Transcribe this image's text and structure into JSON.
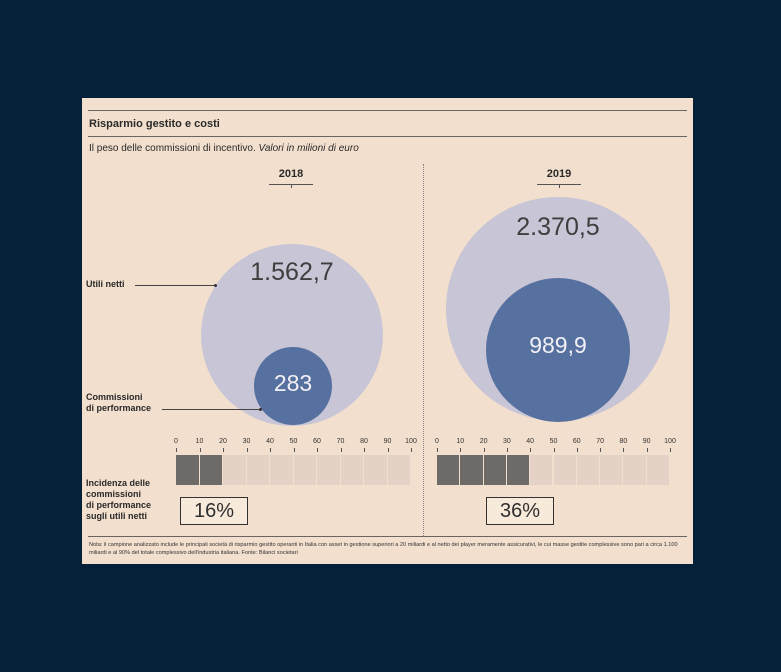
{
  "title": "Risparmio gestito e costi",
  "subtitle_main": "Il peso delle commissioni di incentivo.",
  "subtitle_italic": "Valori in milioni di euro",
  "labels": {
    "utili": "Utili netti",
    "commissioni_1": "Commissioni",
    "commissioni_2": "di performance",
    "incidenza_1": "Incidenza delle",
    "incidenza_2": "commissioni",
    "incidenza_3": "di performance",
    "incidenza_4": "sugli utili netti"
  },
  "chart_data": {
    "type": "bubble",
    "unit": "milioni di euro",
    "years": [
      {
        "year": "2018",
        "utili_netti": 1562.7,
        "utili_label": "1.562,7",
        "commissioni": 283,
        "commissioni_label": "283",
        "incidenza_pct": 16,
        "incidenza_label": "16%",
        "filled_segments": 2
      },
      {
        "year": "2019",
        "utili_netti": 2370.5,
        "utili_label": "2.370,5",
        "commissioni": 989.9,
        "commissioni_label": "989,9",
        "incidenza_pct": 36,
        "incidenza_label": "36%",
        "filled_segments": 4
      }
    ],
    "scale": {
      "min": 0,
      "max": 100,
      "ticks": [
        "0",
        "10",
        "20",
        "30",
        "40",
        "50",
        "60",
        "70",
        "80",
        "90",
        "100"
      ]
    },
    "colors": {
      "utili": "#c7c5d6",
      "commissioni": "#56719f",
      "bar_filled": "#6e6a68",
      "bar_empty": "#e3d2c5"
    }
  },
  "note": "Nota: il campione analizzato include le principali società di risparmio gestito operanti in Italia con asset in gestione superiori a 20 miliardi e al netto dei player meramente assicurativi, le cui masse gestite complessive sono pari a circa 1.100 miliardi e al 90% del totale complessivo dell'industria italiana. Fonte: Bilanci societari"
}
